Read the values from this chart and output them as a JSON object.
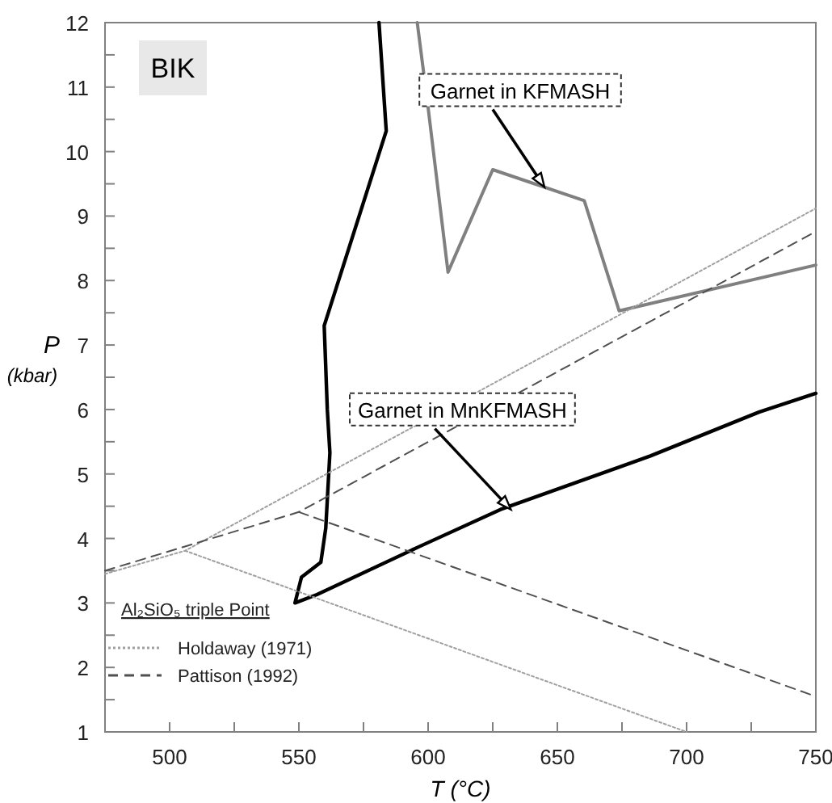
{
  "chart_data": {
    "type": "line",
    "xlabel": "T (°C)",
    "ylabel": "P (kbar)",
    "legend_title": "Al₂SiO₅ triple Point",
    "legend": "bottom left",
    "grid": false,
    "xlim": [
      475,
      750
    ],
    "xticks": [
      500,
      {
        "value": 525,
        "label": null
      },
      550,
      {
        "value": 575,
        "label": null
      },
      600,
      {
        "value": 625,
        "label": null
      },
      650,
      {
        "value": 675,
        "label": null
      },
      700,
      {
        "value": 725,
        "label": null
      },
      750
    ],
    "ylim": [
      1,
      12
    ],
    "yticks": [
      1,
      {
        "value": 1.5,
        "label": null
      },
      2,
      {
        "value": 2.5,
        "label": null
      },
      3,
      {
        "value": 3.5,
        "label": null
      },
      4,
      {
        "value": 4.5,
        "label": null
      },
      5,
      {
        "value": 5.5,
        "label": null
      },
      6,
      {
        "value": 6.5,
        "label": null
      },
      7,
      {
        "value": 7.5,
        "label": null
      },
      8,
      {
        "value": 8.5,
        "label": null
      },
      9,
      {
        "value": 9.5,
        "label": null
      },
      10,
      {
        "value": 10.5,
        "label": null
      },
      11,
      {
        "value": 11.5,
        "label": null
      },
      12
    ],
    "series": [
      {
        "color": "#000000",
        "line_style": "solid",
        "x": [
          581,
          583.8,
          559.8,
          561,
          562,
          560.4,
          558.5,
          551,
          548.5,
          557,
          596.9,
          628,
          686,
          728,
          750
        ],
        "values": [
          12,
          10.32,
          7.3,
          6,
          5.33,
          4.16,
          3.63,
          3.4,
          3.0,
          3.13,
          3.88,
          4.45,
          5.28,
          5.96,
          6.25
        ]
      },
      {
        "color": "#808080",
        "line_style": "solid",
        "x": [
          595.8,
          600,
          607.7,
          625,
          660.4,
          673.9,
          750
        ],
        "values": [
          12,
          10.68,
          8.13,
          9.72,
          9.24,
          7.53,
          8.24
        ]
      },
      {
        "name": "Holdaway (1971)",
        "color": "#a0a0a0",
        "line_style": "dotted",
        "x": [
          475,
          506,
          750
        ],
        "values": [
          3.45,
          3.81,
          9.12
        ]
      },
      {
        "color": "#a0a0a0",
        "line_style": "dotted",
        "x": [
          506,
          700
        ],
        "values": [
          3.81,
          1.0
        ]
      },
      {
        "name": "Pattison (1992)",
        "color": "#505050",
        "line_style": "dashed",
        "x": [
          475,
          550,
          750
        ],
        "values": [
          3.5,
          4.41,
          8.76
        ]
      },
      {
        "color": "#505050",
        "line_style": "dashed",
        "x": [
          550,
          750
        ],
        "values": [
          4.41,
          1.55
        ]
      }
    ],
    "annotations": [
      "BIK",
      {
        "text": "Garnet in KFMASH",
        "x": 645,
        "y": 9.45
      },
      {
        "text": "Garnet in MnKFMASH",
        "x": 632,
        "y": 4.45
      }
    ]
  }
}
